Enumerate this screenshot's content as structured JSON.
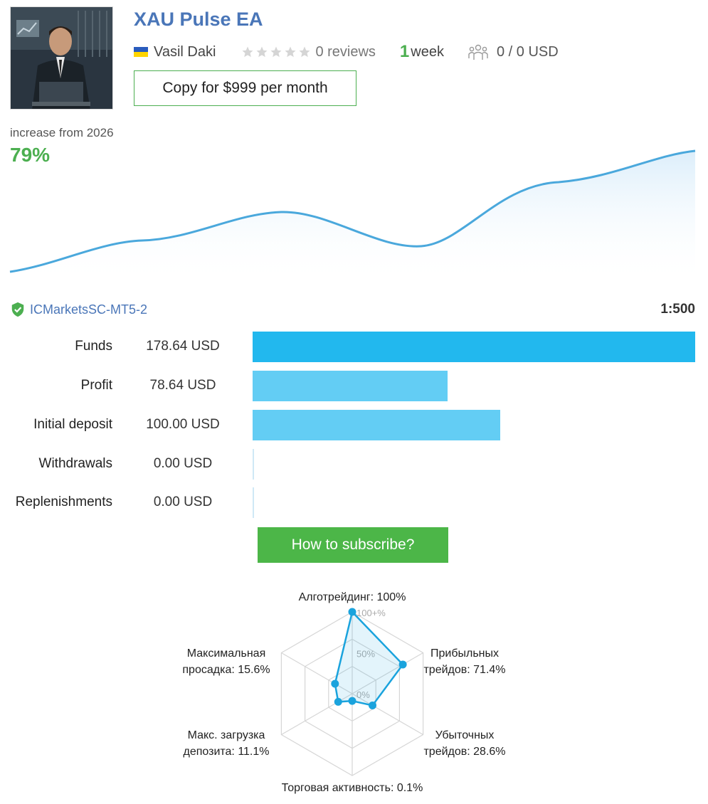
{
  "header": {
    "title": "XAU Pulse EA",
    "author": "Vasil Daki",
    "reviews": "0 reviews",
    "weeks_number": "1",
    "weeks_label": "week",
    "subscribers": "0 / 0 USD",
    "copy_button": "Copy for $999 per month"
  },
  "growth": {
    "label": "increase from 2026",
    "value": "79%",
    "line_color": "#4aa8dc"
  },
  "broker": {
    "server": "ICMarketsSC-MT5-2",
    "leverage": "1:500"
  },
  "stats": [
    {
      "label": "Funds",
      "value": "178.64 USD",
      "amount": 178.64,
      "color": "#22b8ee"
    },
    {
      "label": "Profit",
      "value": "78.64 USD",
      "amount": 78.64,
      "color": "#63cdf4"
    },
    {
      "label": "Initial deposit",
      "value": "100.00 USD",
      "amount": 100.0,
      "color": "#63cdf4"
    },
    {
      "label": "Withdrawals",
      "value": "0.00 USD",
      "amount": 0,
      "color": "#63cdf4"
    },
    {
      "label": "Replenishments",
      "value": "0.00 USD",
      "amount": 0,
      "color": "#63cdf4"
    }
  ],
  "subscribe_button": "How to subscribe?",
  "radar": {
    "ticks": [
      "100+%",
      "50%",
      "0%"
    ],
    "axes": [
      {
        "label1": "Алготрейдинг: 100%",
        "label2": "",
        "value": 100
      },
      {
        "label1": "Прибыльных",
        "label2": "трейдов: 71.4%",
        "value": 71.4
      },
      {
        "label1": "Убыточных",
        "label2": "трейдов: 28.6%",
        "value": 28.6
      },
      {
        "label1": "Торговая активность: 0.1%",
        "label2": "",
        "value": 0.1
      },
      {
        "label1": "Макс. загрузка",
        "label2": "депозита: 11.1%",
        "value": 11.1
      },
      {
        "label1": "Максимальная",
        "label2": "просадка: 15.6%",
        "value": 15.6
      }
    ],
    "color": "#1aa3dd"
  }
}
